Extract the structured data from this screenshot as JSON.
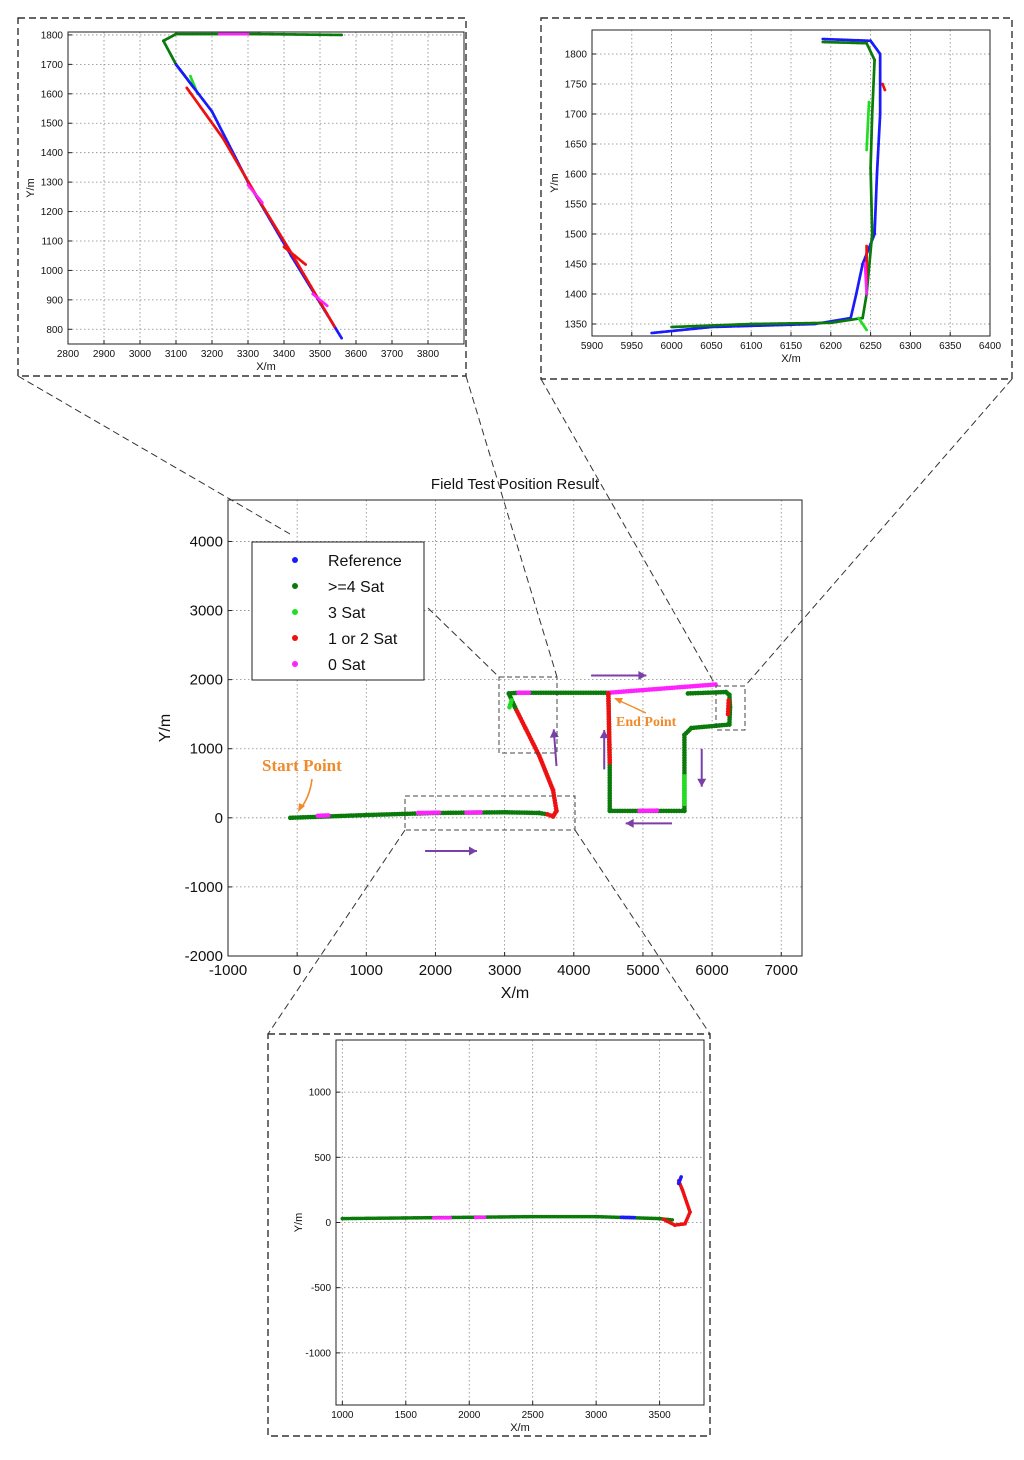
{
  "chart_data": [
    {
      "id": "main",
      "type": "scatter",
      "title": "Field Test Position Result",
      "xlabel": "X/m",
      "ylabel": "Y/m",
      "xlim": [
        -1000,
        7300
      ],
      "ylim": [
        -2000,
        4600
      ],
      "xticks": [
        -1000,
        0,
        1000,
        2000,
        3000,
        4000,
        5000,
        6000,
        7000
      ],
      "yticks": [
        -2000,
        -1000,
        0,
        1000,
        2000,
        3000,
        4000
      ],
      "grid": true,
      "legend_position": "top-left",
      "legend": [
        {
          "label": "Reference",
          "color": "#1a1aff"
        },
        {
          "label": ">=4 Sat",
          "color": "#0a7a0a"
        },
        {
          "label": "3 Sat",
          "color": "#22dd22"
        },
        {
          "label": "1 or 2 Sat",
          "color": "#ee1111"
        },
        {
          "label": "0 Sat",
          "color": "#ff22ff"
        }
      ],
      "annotations": [
        {
          "text": "Start Point",
          "x": 0,
          "y": 0
        },
        {
          "text": "End Point",
          "x": 6000,
          "y": 1900
        }
      ],
      "segments": [
        {
          "status": ">=4 Sat",
          "points": [
            [
              -100,
              0
            ],
            [
              1000,
              40
            ],
            [
              2000,
              70
            ],
            [
              3000,
              80
            ],
            [
              3500,
              70
            ],
            [
              3620,
              50
            ]
          ]
        },
        {
          "status": "0 Sat",
          "points": [
            [
              300,
              30
            ],
            [
              450,
              35
            ]
          ]
        },
        {
          "status": "0 Sat",
          "points": [
            [
              1750,
              70
            ],
            [
              2050,
              75
            ]
          ]
        },
        {
          "status": "0 Sat",
          "points": [
            [
              2450,
              75
            ],
            [
              2650,
              78
            ]
          ]
        },
        {
          "status": "1 or 2 Sat",
          "points": [
            [
              3620,
              50
            ],
            [
              3700,
              20
            ],
            [
              3750,
              100
            ],
            [
              3700,
              400
            ],
            [
              3500,
              900
            ],
            [
              3300,
              1300
            ],
            [
              3150,
              1600
            ]
          ]
        },
        {
          "status": ">=4 Sat",
          "points": [
            [
              3150,
              1600
            ],
            [
              3060,
              1800
            ],
            [
              3200,
              1810
            ],
            [
              4500,
              1810
            ]
          ]
        },
        {
          "status": "3 Sat",
          "points": [
            [
              3070,
              1600
            ],
            [
              3100,
              1700
            ]
          ]
        },
        {
          "status": "0 Sat",
          "points": [
            [
              3200,
              1810
            ],
            [
              3350,
              1810
            ]
          ]
        },
        {
          "status": "0 Sat",
          "points": [
            [
              4500,
              1810
            ],
            [
              6050,
              1930
            ]
          ]
        },
        {
          "status": ">=4 Sat",
          "points": [
            [
              5650,
              1800
            ],
            [
              6200,
              1820
            ],
            [
              6250,
              1780
            ],
            [
              6260,
              1600
            ],
            [
              6250,
              1350
            ],
            [
              5700,
              1300
            ],
            [
              5600,
              1200
            ],
            [
              5600,
              100
            ],
            [
              5000,
              100
            ],
            [
              4520,
              100
            ],
            [
              4520,
              800
            ],
            [
              4500,
              1800
            ]
          ]
        },
        {
          "status": "1 or 2 Sat",
          "points": [
            [
              4520,
              800
            ],
            [
              4500,
              1800
            ]
          ]
        },
        {
          "status": "0 Sat",
          "points": [
            [
              4950,
              100
            ],
            [
              5200,
              105
            ]
          ]
        },
        {
          "status": "3 Sat",
          "points": [
            [
              5600,
              600
            ],
            [
              5600,
              200
            ]
          ]
        },
        {
          "status": "1 or 2 Sat",
          "points": [
            [
              6230,
              1500
            ],
            [
              6240,
              1700
            ]
          ]
        }
      ],
      "arrows": [
        {
          "from": [
            1850,
            -480
          ],
          "to": [
            2600,
            -480
          ]
        },
        {
          "from": [
            4250,
            2060
          ],
          "to": [
            5050,
            2060
          ]
        },
        {
          "from": [
            5850,
            1000
          ],
          "to": [
            5850,
            450
          ]
        },
        {
          "from": [
            5420,
            -80
          ],
          "to": [
            4750,
            -80
          ]
        },
        {
          "from": [
            4440,
            700
          ],
          "to": [
            4440,
            1270
          ]
        },
        {
          "from": [
            3750,
            750
          ],
          "to": [
            3710,
            1280
          ]
        }
      ]
    },
    {
      "id": "inset-top-left",
      "type": "scatter",
      "xlabel": "X/m",
      "ylabel": "Y/m",
      "xlim": [
        2800,
        3900
      ],
      "ylim": [
        750,
        1810
      ],
      "xticks": [
        2800,
        2900,
        3000,
        3100,
        3200,
        3300,
        3400,
        3500,
        3600,
        3700,
        3800
      ],
      "yticks": [
        800,
        900,
        1000,
        1100,
        1200,
        1300,
        1400,
        1500,
        1600,
        1700,
        1800
      ],
      "grid": true,
      "segments": [
        {
          "status": ">=4 Sat",
          "points": [
            [
              3560,
              1800
            ],
            [
              3330,
              1803
            ],
            [
              3100,
              1803
            ],
            [
              3065,
              1780
            ],
            [
              3100,
              1700
            ],
            [
              3150,
              1620
            ]
          ]
        },
        {
          "status": "0 Sat",
          "points": [
            [
              3220,
              1803
            ],
            [
              3300,
              1803
            ]
          ]
        },
        {
          "status": "3 Sat",
          "points": [
            [
              3140,
              1660
            ],
            [
              3160,
              1600
            ]
          ]
        },
        {
          "status": "Reference",
          "points": [
            [
              3100,
              1700
            ],
            [
              3200,
              1540
            ],
            [
              3300,
              1300
            ],
            [
              3420,
              1050
            ],
            [
              3560,
              770
            ]
          ]
        },
        {
          "status": "1 or 2 Sat",
          "points": [
            [
              3130,
              1620
            ],
            [
              3230,
              1450
            ],
            [
              3330,
              1240
            ],
            [
              3420,
              1060
            ],
            [
              3540,
              810
            ]
          ]
        },
        {
          "status": "1 or 2 Sat",
          "points": [
            [
              3400,
              1080
            ],
            [
              3460,
              1020
            ]
          ]
        },
        {
          "status": "0 Sat",
          "points": [
            [
              3300,
              1290
            ],
            [
              3340,
              1230
            ]
          ]
        },
        {
          "status": "0 Sat",
          "points": [
            [
              3480,
              920
            ],
            [
              3520,
              880
            ]
          ]
        }
      ]
    },
    {
      "id": "inset-top-right",
      "type": "scatter",
      "xlabel": "X/m",
      "ylabel": "Y/m",
      "xlim": [
        5900,
        6400
      ],
      "ylim": [
        1330,
        1840
      ],
      "xticks": [
        5900,
        5950,
        6000,
        6050,
        6100,
        6150,
        6200,
        6250,
        6300,
        6350,
        6400
      ],
      "yticks": [
        1350,
        1400,
        1450,
        1500,
        1550,
        1600,
        1650,
        1700,
        1750,
        1800
      ],
      "grid": true,
      "segments": [
        {
          "status": "Reference",
          "points": [
            [
              6190,
              1825
            ],
            [
              6250,
              1822
            ],
            [
              6262,
              1800
            ],
            [
              6262,
              1700
            ],
            [
              6258,
              1600
            ],
            [
              6255,
              1500
            ],
            [
              6240,
              1450
            ],
            [
              6232,
              1400
            ],
            [
              6225,
              1360
            ],
            [
              6180,
              1350
            ],
            [
              6050,
              1345
            ],
            [
              5975,
              1335
            ]
          ]
        },
        {
          "status": ">=4 Sat",
          "points": [
            [
              6190,
              1820
            ],
            [
              6245,
              1818
            ],
            [
              6255,
              1790
            ],
            [
              6252,
              1700
            ],
            [
              6250,
              1610
            ],
            [
              6252,
              1500
            ],
            [
              6245,
              1400
            ],
            [
              6240,
              1360
            ],
            [
              6200,
              1352
            ],
            [
              6100,
              1350
            ],
            [
              6000,
              1345
            ]
          ]
        },
        {
          "status": "3 Sat",
          "points": [
            [
              6248,
              1720
            ],
            [
              6245,
              1640
            ]
          ]
        },
        {
          "status": "3 Sat",
          "points": [
            [
              6235,
              1360
            ],
            [
              6245,
              1340
            ]
          ]
        },
        {
          "status": "1 or 2 Sat",
          "points": [
            [
              6265,
              1750
            ],
            [
              6268,
              1740
            ]
          ]
        },
        {
          "status": "1 or 2 Sat",
          "points": [
            [
              6245,
              1480
            ],
            [
              6245,
              1420
            ]
          ]
        },
        {
          "status": "0 Sat",
          "points": [
            [
              6243,
              1450
            ],
            [
              6245,
              1400
            ]
          ]
        }
      ]
    },
    {
      "id": "inset-bottom",
      "type": "scatter",
      "xlabel": "X/m",
      "ylabel": "Y/m",
      "xlim": [
        950,
        3850
      ],
      "ylim": [
        -1400,
        1400
      ],
      "xticks": [
        1000,
        1500,
        2000,
        2500,
        3000,
        3500
      ],
      "yticks": [
        -1000,
        -500,
        0,
        500,
        1000
      ],
      "grid": true,
      "segments": [
        {
          "status": ">=4 Sat",
          "points": [
            [
              1000,
              30
            ],
            [
              1500,
              35
            ],
            [
              2000,
              40
            ],
            [
              2500,
              45
            ],
            [
              3000,
              45
            ],
            [
              3500,
              30
            ],
            [
              3600,
              20
            ]
          ]
        },
        {
          "status": "0 Sat",
          "points": [
            [
              1720,
              35
            ],
            [
              1850,
              36
            ]
          ]
        },
        {
          "status": "0 Sat",
          "points": [
            [
              2050,
              38
            ],
            [
              2120,
              40
            ]
          ]
        },
        {
          "status": "Reference",
          "points": [
            [
              3200,
              40
            ],
            [
              3300,
              38
            ]
          ]
        },
        {
          "status": "1 or 2 Sat",
          "points": [
            [
              3530,
              25
            ],
            [
              3620,
              -20
            ],
            [
              3700,
              -10
            ],
            [
              3740,
              80
            ],
            [
              3680,
              250
            ],
            [
              3650,
              320
            ]
          ]
        },
        {
          "status": "Reference",
          "points": [
            [
              3650,
              300
            ],
            [
              3670,
              350
            ]
          ]
        }
      ]
    }
  ]
}
